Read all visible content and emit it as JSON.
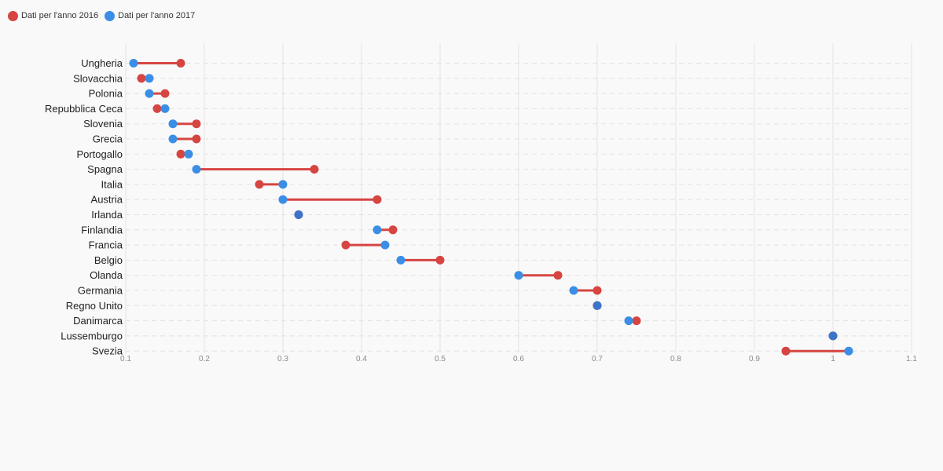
{
  "colors": {
    "series_2016": "#d64541",
    "series_2017": "#3a8ee6",
    "overlap": "#3b74c9",
    "grid": "#e2e2e2",
    "tick_text": "#8a8a8a",
    "category_text": "#222222"
  },
  "chart_data": {
    "type": "dumbbell",
    "title": "",
    "xlabel": "",
    "ylabel": "",
    "xlim": [
      0.1,
      1.1
    ],
    "x_ticks": [
      0.1,
      0.2,
      0.3,
      0.4,
      0.5,
      0.6,
      0.7,
      0.8,
      0.9,
      1,
      1.1
    ],
    "x_tick_labels": [
      "0.1",
      "0.2",
      "0.3",
      "0.4",
      "0.5",
      "0.6",
      "0.7",
      "0.8",
      "0.9",
      "1",
      "1.1"
    ],
    "grid": true,
    "legend_position": "top-left",
    "categories": [
      "Ungheria",
      "Slovacchia",
      "Polonia",
      "Repubblica Ceca",
      "Slovenia",
      "Grecia",
      "Portogallo",
      "Spagna",
      "Italia",
      "Austria",
      "Irlanda",
      "Finlandia",
      "Francia",
      "Belgio",
      "Olanda",
      "Germania",
      "Regno Unito",
      "Danimarca",
      "Lussemburgo",
      "Svezia"
    ],
    "series": [
      {
        "name": "Dati per l'anno 2016",
        "values": [
          0.17,
          0.12,
          0.15,
          0.14,
          0.19,
          0.19,
          0.17,
          0.34,
          0.27,
          0.42,
          0.32,
          0.44,
          0.38,
          0.5,
          0.65,
          0.7,
          0.7,
          0.75,
          1.0,
          0.94
        ]
      },
      {
        "name": "Dati per l'anno 2017",
        "values": [
          0.11,
          0.13,
          0.13,
          0.15,
          0.16,
          0.16,
          0.18,
          0.19,
          0.3,
          0.3,
          0.32,
          0.42,
          0.43,
          0.45,
          0.6,
          0.67,
          0.7,
          0.74,
          1.0,
          1.02
        ]
      }
    ]
  }
}
